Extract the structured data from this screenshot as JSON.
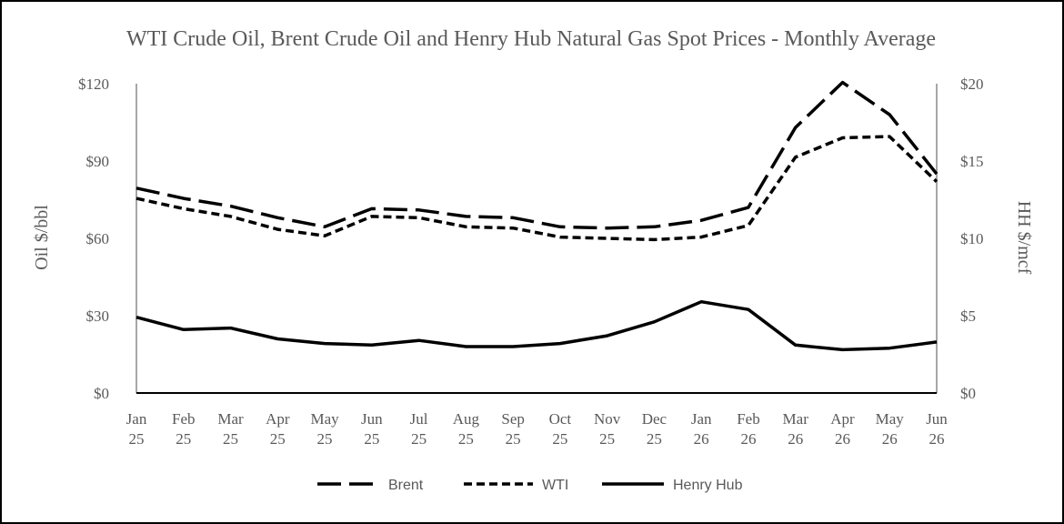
{
  "chart_data": {
    "type": "line",
    "title": "WTI Crude Oil, Brent Crude Oil and Henry Hub Natural Gas Spot Prices - Monthly Average",
    "categories": [
      [
        "Jan",
        "25"
      ],
      [
        "Feb",
        "25"
      ],
      [
        "Mar",
        "25"
      ],
      [
        "Apr",
        "25"
      ],
      [
        "May",
        "25"
      ],
      [
        "Jun",
        "25"
      ],
      [
        "Jul",
        "25"
      ],
      [
        "Aug",
        "25"
      ],
      [
        "Sep",
        "25"
      ],
      [
        "Oct",
        "25"
      ],
      [
        "Nov",
        "25"
      ],
      [
        "Dec",
        "25"
      ],
      [
        "Jan",
        "26"
      ],
      [
        "Feb",
        "26"
      ],
      [
        "Mar",
        "26"
      ],
      [
        "Apr",
        "26"
      ],
      [
        "May",
        "26"
      ],
      [
        "Jun",
        "26"
      ]
    ],
    "y_left": {
      "label": "Oil $/bbl",
      "range": [
        0,
        120
      ],
      "ticks": [
        0,
        30,
        60,
        90,
        120
      ],
      "tick_labels": [
        "$0",
        "$30",
        "$60",
        "$90",
        "$120"
      ]
    },
    "y_right": {
      "label": "HH $/mcf",
      "range": [
        0,
        20
      ],
      "ticks": [
        0,
        5,
        10,
        15,
        20
      ],
      "tick_labels": [
        "$0",
        "$5",
        "$10",
        "$15",
        "$20"
      ]
    },
    "series": [
      {
        "name": "Brent",
        "axis": "left",
        "style": "long-dash",
        "color": "#000000",
        "values": [
          79.5,
          75.5,
          72.5,
          68,
          64.5,
          71.5,
          71,
          68.5,
          68,
          64.5,
          64,
          64.5,
          67,
          72,
          103,
          120.5,
          108,
          85
        ]
      },
      {
        "name": "WTI",
        "axis": "left",
        "style": "short-dash",
        "color": "#000000",
        "values": [
          75.5,
          71.5,
          68.5,
          63.5,
          61,
          68.5,
          68,
          64.5,
          64,
          60.5,
          60,
          59.5,
          60.5,
          65,
          91.5,
          99,
          99.5,
          82
        ]
      },
      {
        "name": "Henry Hub",
        "axis": "right",
        "style": "solid",
        "color": "#000000",
        "values": [
          4.9,
          4.1,
          4.2,
          3.5,
          3.2,
          3.1,
          3.4,
          3.0,
          3.0,
          3.2,
          3.7,
          4.6,
          5.9,
          5.4,
          3.1,
          2.8,
          2.9,
          3.3
        ]
      }
    ],
    "legend_position": "bottom",
    "grid": false
  }
}
